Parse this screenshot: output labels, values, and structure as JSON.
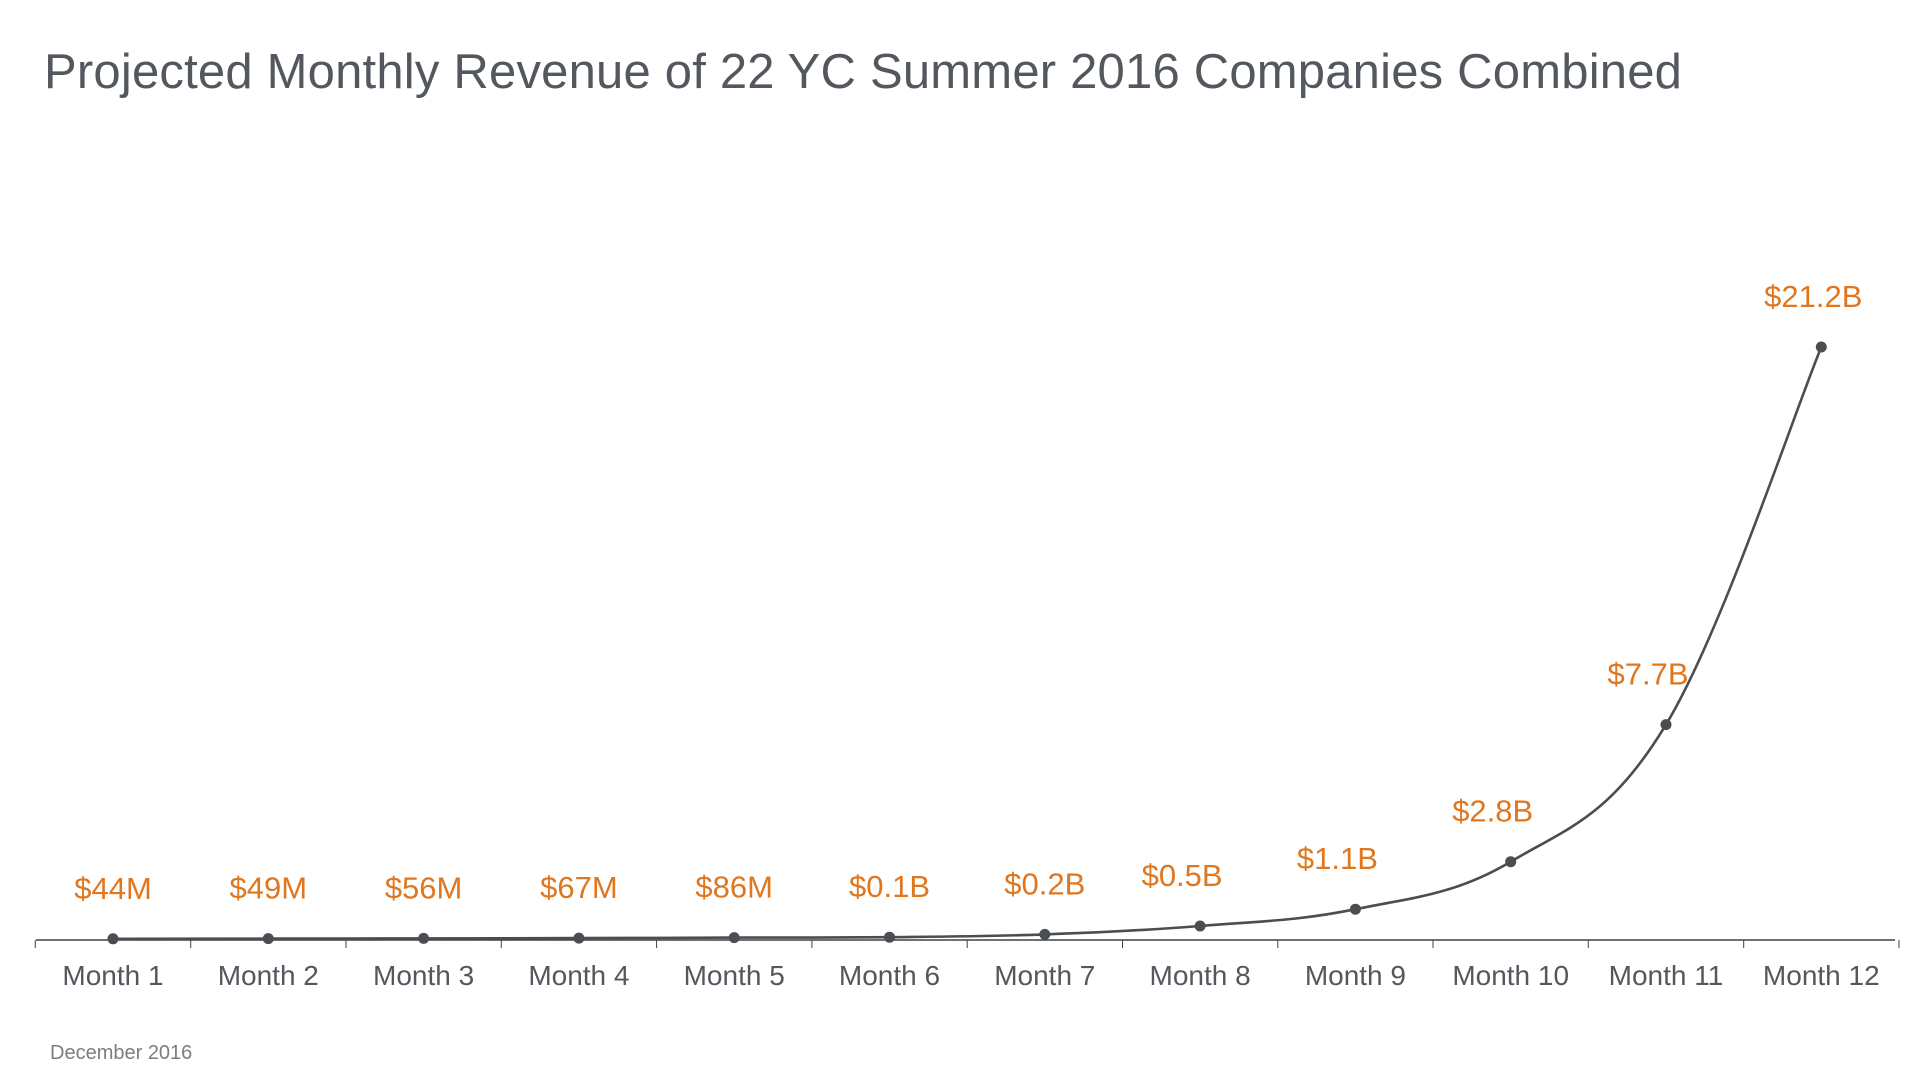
{
  "title": "Projected Monthly Revenue of 22 YC Summer 2016 Companies Combined",
  "footnote": "December 2016",
  "colors": {
    "title": "#53585f",
    "line": "#4a4d52",
    "point": "#4a4d52",
    "data_label": "#e0761e",
    "axis": "#3f4246",
    "tick_label": "#53585f",
    "footnote": "#7a7e84"
  },
  "chart_data": {
    "type": "line",
    "title": "Projected Monthly Revenue of 22 YC Summer 2016 Companies Combined",
    "xlabel": "",
    "ylabel": "",
    "categories": [
      "Month 1",
      "Month 2",
      "Month 3",
      "Month 4",
      "Month 5",
      "Month 6",
      "Month 7",
      "Month 8",
      "Month 9",
      "Month 10",
      "Month 11",
      "Month 12"
    ],
    "series": [
      {
        "values": [
          0.044,
          0.049,
          0.056,
          0.067,
          0.086,
          0.1,
          0.2,
          0.5,
          1.1,
          2.8,
          7.7,
          21.2
        ],
        "labels": [
          "$44M",
          "$49M",
          "$56M",
          "$67M",
          "$86M",
          "$0.1B",
          "$0.2B",
          "$0.5B",
          "$1.1B",
          "$2.8B",
          "$7.7B",
          "$21.2B"
        ],
        "unit": "$B"
      }
    ],
    "ylim": [
      0,
      21.2
    ],
    "grid": false,
    "legend": "none"
  }
}
